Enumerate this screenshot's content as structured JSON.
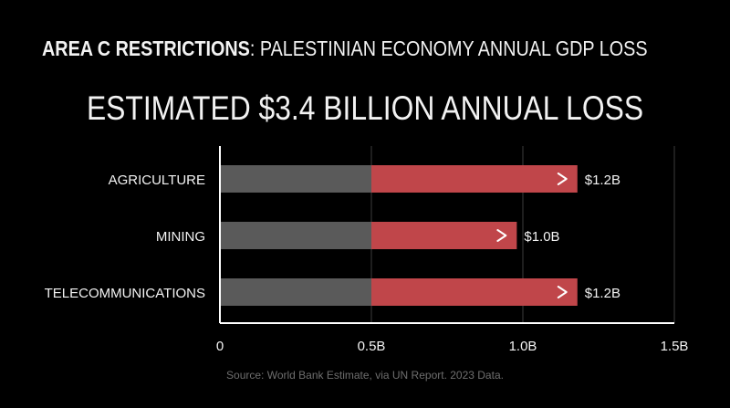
{
  "header": {
    "title_bold": "AREA C RESTRICTIONS",
    "title_rest": ": PALESTINIAN ECONOMY ANNUAL GDP LOSS"
  },
  "headline": "ESTIMATED $3.4 BILLION ANNUAL LOSS",
  "source": "Source: World Bank Estimate, via UN Report. 2023 Data.",
  "colors": {
    "background": "#000000",
    "base_bar": "#5a5a5a",
    "highlight_bar": "#c0464a",
    "text": "#f2f2f2",
    "gridline": "#3c3c3c"
  },
  "chart_data": {
    "type": "bar",
    "orientation": "horizontal",
    "title": "ESTIMATED $3.4 BILLION ANNUAL LOSS",
    "categories": [
      "AGRICULTURE",
      "MINING",
      "TELECOMMUNICATIONS"
    ],
    "values": [
      1.18,
      0.98,
      1.18
    ],
    "baseline_segment": 0.5,
    "data_labels": [
      "$1.2B",
      "$1.0B",
      "$1.2B"
    ],
    "xlim": [
      0,
      1.5
    ],
    "xticks": [
      0,
      0.5,
      1.0,
      1.5
    ],
    "xtick_labels": [
      "0",
      "0.5B",
      "1.0B",
      "1.5B"
    ],
    "xlabel": "",
    "ylabel": "",
    "grid": true
  }
}
